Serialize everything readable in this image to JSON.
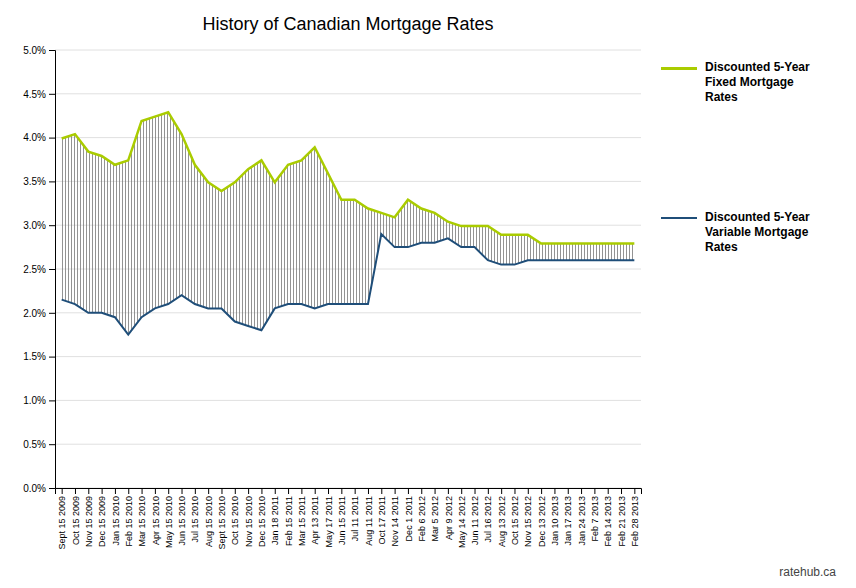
{
  "chart_data": {
    "type": "line",
    "title": "History of Canadian Mortgage Rates",
    "categories": [
      "Sept 15 2009",
      "Oct 15 2009",
      "Nov 15 2009",
      "Dec 15 2009",
      "Jan 15 2010",
      "Feb 15 2010",
      "Mar 15 2010",
      "Apr 15 2010",
      "May 15 2010",
      "Jun 15 2010",
      "Jul 15 2010",
      "Aug 15 2010",
      "Sept 15 2010",
      "Oct 15 2010",
      "Nov 15 2010",
      "Dec 15 2010",
      "Jan 18 2011",
      "Feb 15 2011",
      "Mar 15 2011",
      "Apr 13 2011",
      "May 17 2011",
      "Jun 15 2011",
      "Jul 11 2011",
      "Aug 11 2011",
      "Oct 17 2011",
      "Nov 14 2011",
      "Dec 1 2011",
      "Feb 6 2012",
      "Mar 5 2012",
      "Apr 9 2012",
      "May 14 2012",
      "Jun 11 2012",
      "Jul 16 2012",
      "Aug 13 2012",
      "Oct 15 2012",
      "Nov 15 2012",
      "Dec 13 2012",
      "Jan 10 2013",
      "Jan 17 2013",
      "Jan 24 2013",
      "Feb 7 2013",
      "Feb 14 2013",
      "Feb 21 2013",
      "Feb 28 2013"
    ],
    "series": [
      {
        "name": "Discounted 5-Year\nFixed Mortgage\nRates",
        "color": "#AACC00",
        "values": [
          0.0399,
          0.0404,
          0.0384,
          0.0379,
          0.0369,
          0.0374,
          0.0419,
          0.0424,
          0.0429,
          0.0404,
          0.0369,
          0.0349,
          0.0339,
          0.0349,
          0.0364,
          0.0374,
          0.0349,
          0.0369,
          0.0374,
          0.0389,
          0.0359,
          0.0329,
          0.0329,
          0.0319,
          0.0314,
          0.0309,
          0.0329,
          0.0319,
          0.0314,
          0.0304,
          0.0299,
          0.0299,
          0.0299,
          0.0289,
          0.0289,
          0.0289,
          0.0279,
          0.0279,
          0.0279,
          0.0279,
          0.0279,
          0.0279,
          0.0279,
          0.0279
        ]
      },
      {
        "name": "Discounted 5-Year\nVariable Mortgage\nRates",
        "color": "#1F4E79",
        "values": [
          0.0215,
          0.021,
          0.02,
          0.02,
          0.0195,
          0.0175,
          0.0195,
          0.0205,
          0.021,
          0.022,
          0.021,
          0.0205,
          0.0205,
          0.019,
          0.0185,
          0.018,
          0.0205,
          0.021,
          0.021,
          0.0205,
          0.021,
          0.021,
          0.021,
          0.021,
          0.029,
          0.0275,
          0.0275,
          0.028,
          0.028,
          0.0285,
          0.0275,
          0.0275,
          0.026,
          0.0255,
          0.0255,
          0.026,
          0.026,
          0.026,
          0.026,
          0.026,
          0.026,
          0.026,
          0.026,
          0.026
        ]
      }
    ],
    "ylim": [
      0.0,
      0.05
    ],
    "yticks": [
      {
        "value": 0.0,
        "label": "0.0%"
      },
      {
        "value": 0.005,
        "label": "0.5%"
      },
      {
        "value": 0.01,
        "label": "1.0%"
      },
      {
        "value": 0.015,
        "label": "1.5%"
      },
      {
        "value": 0.02,
        "label": "2.0%"
      },
      {
        "value": 0.025,
        "label": "2.5%"
      },
      {
        "value": 0.03,
        "label": "3.0%"
      },
      {
        "value": 0.035,
        "label": "3.5%"
      },
      {
        "value": 0.04,
        "label": "4.0%"
      },
      {
        "value": 0.045,
        "label": "4.5%"
      },
      {
        "value": 0.05,
        "label": "5.0%"
      }
    ],
    "grid": true,
    "legend": "right",
    "annotations": [
      "ratehub.ca"
    ]
  }
}
